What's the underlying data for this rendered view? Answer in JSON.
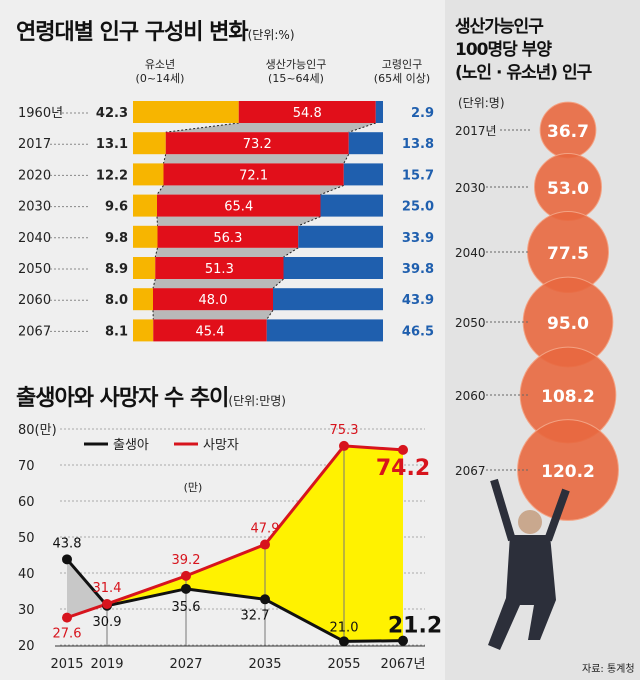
{
  "composition": {
    "title": "연령대별 인구 구성비 변화",
    "unit": "(단위:%)",
    "legend": [
      {
        "label": "유소년",
        "sub": "(0~14세)"
      },
      {
        "label": "생산가능인구",
        "sub": "(15~64세)"
      },
      {
        "label": "고령인구",
        "sub": "(65세 이상)"
      }
    ],
    "colors": {
      "young": "#f7b500",
      "working": "#e10f1a",
      "old": "#1f5fae",
      "gap": "#b9b9b9"
    }
  },
  "births_deaths": {
    "title": "출생아와 사망자 수 추이",
    "unit": "(단위:만명)",
    "stray_label": "(만)",
    "colors": {
      "births": "#111111",
      "deaths": "#d7141d",
      "fill": "#fff200",
      "fill_early": "#c8c8c8"
    }
  },
  "dependency": {
    "title_lines": [
      "생산가능인구",
      "100명당 부양",
      "(노인 · 유소년) 인구"
    ],
    "unit": "(단위:명)",
    "color": "#e8683f",
    "source": "자료: 통계청"
  },
  "chart_data": [
    {
      "type": "bar",
      "stacked": true,
      "orientation": "horizontal",
      "categories": [
        "1960년",
        "2017",
        "2020",
        "2030",
        "2040",
        "2050",
        "2060",
        "2067"
      ],
      "series": [
        {
          "name": "유소년",
          "values": [
            42.3,
            13.1,
            12.2,
            9.6,
            9.8,
            8.9,
            8.0,
            8.1
          ]
        },
        {
          "name": "생산가능인구",
          "values": [
            54.8,
            73.2,
            72.1,
            65.4,
            56.3,
            51.3,
            48.0,
            45.4
          ]
        },
        {
          "name": "고령인구",
          "values": [
            2.9,
            13.8,
            15.7,
            25.0,
            33.9,
            39.8,
            43.9,
            46.5
          ]
        }
      ]
    },
    {
      "type": "line",
      "x": [
        "2015",
        "2019",
        "2027",
        "2035",
        "2055",
        "2067년"
      ],
      "series": [
        {
          "name": "출생아",
          "values": [
            43.8,
            30.9,
            35.6,
            32.7,
            21.0,
            21.2
          ]
        },
        {
          "name": "사망자",
          "values": [
            27.6,
            31.4,
            39.2,
            47.9,
            75.3,
            74.2
          ]
        }
      ],
      "ylim": [
        20,
        80
      ],
      "yticks": [
        "80(만)",
        "70",
        "60",
        "50",
        "40",
        "30",
        "20"
      ],
      "grid": true,
      "legend": "top-left"
    },
    {
      "type": "bubble",
      "categories": [
        "2017년",
        "2030",
        "2040",
        "2050",
        "2060",
        "2067"
      ],
      "values": [
        36.7,
        53.0,
        77.5,
        95.0,
        108.2,
        120.2
      ]
    }
  ]
}
